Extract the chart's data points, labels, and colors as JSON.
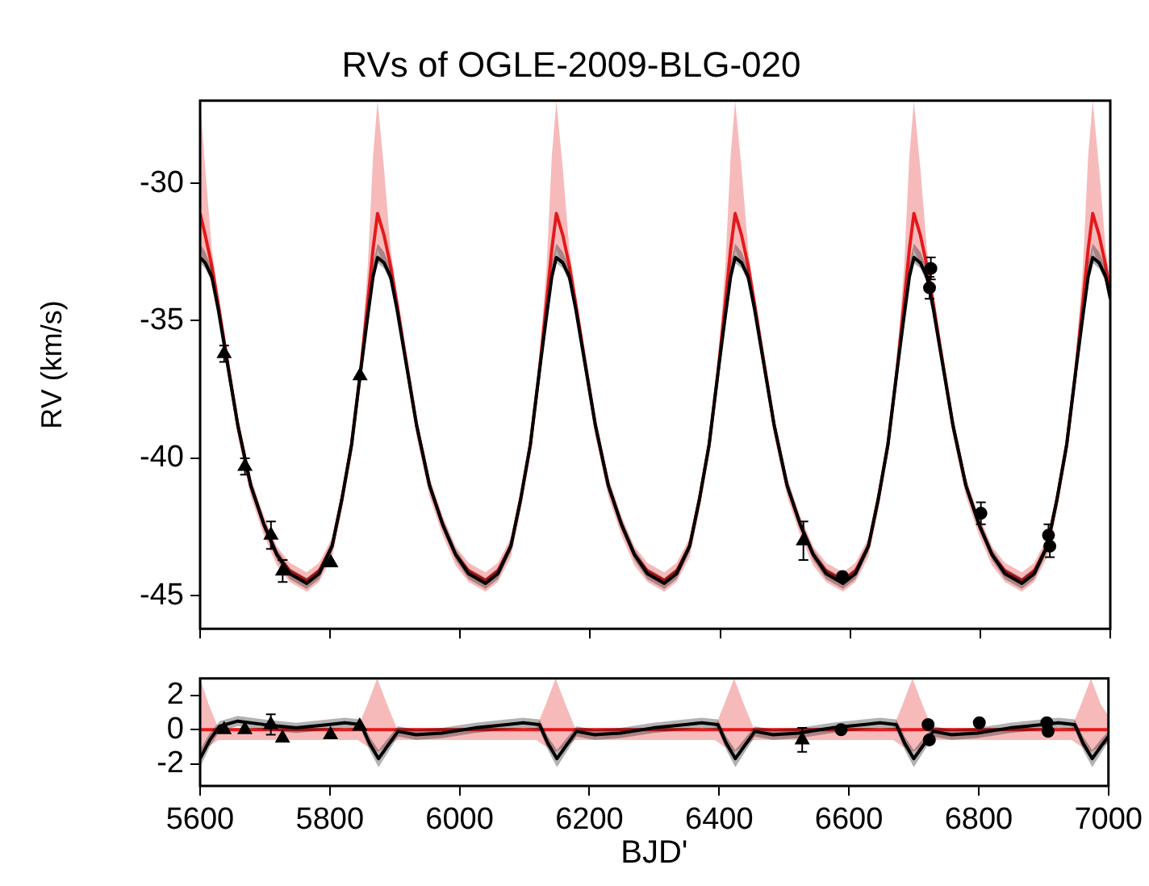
{
  "chart_data": [
    {
      "type": "line",
      "title": "RVs of OGLE-2009-BLG-020",
      "ylabel": "RV (km/s)",
      "xlim": [
        5600,
        7000
      ],
      "xticks": [
        5600,
        5800,
        6000,
        6200,
        6400,
        6600,
        6800,
        7000
      ],
      "ylim": [
        -46.2,
        -27
      ],
      "yticks": [
        -45,
        -40,
        -35,
        -30
      ],
      "tick_labels": "y",
      "grid": false,
      "legend": false,
      "series": [
        {
          "type": "line",
          "color": "#e31a1c",
          "marker": "none",
          "x": [
            5600,
            5608,
            5618,
            5628,
            5638,
            5658,
            5678,
            5698,
            5718,
            5738,
            5764,
            5783,
            5803,
            5818,
            5833,
            5846,
            5858,
            5866,
            5873,
            5883,
            5893,
            5903,
            5913,
            5933,
            5953,
            5973,
            5993,
            6013,
            6039,
            6058,
            6078,
            6093,
            6108,
            6121,
            6133,
            6141,
            6148,
            6158,
            6168,
            6178,
            6188,
            6208,
            6228,
            6248,
            6268,
            6288,
            6314,
            6333,
            6353,
            6368,
            6383,
            6396,
            6408,
            6416,
            6423,
            6433,
            6443,
            6453,
            6463,
            6483,
            6503,
            6523,
            6543,
            6563,
            6589,
            6608,
            6628,
            6643,
            6658,
            6671,
            6683,
            6691,
            6698,
            6708,
            6718,
            6728,
            6738,
            6758,
            6778,
            6798,
            6818,
            6838,
            6864,
            6883,
            6903,
            6918,
            6933,
            6946,
            6958,
            6966,
            6973,
            6983,
            6993,
            7000
          ],
          "values": [
            -31.1,
            -31.9,
            -33.0,
            -34.4,
            -35.9,
            -38.8,
            -41.0,
            -42.4,
            -43.5,
            -44.1,
            -44.45,
            -44.1,
            -43.2,
            -41.5,
            -39.5,
            -37.0,
            -34.3,
            -32.4,
            -31.1,
            -31.9,
            -33.0,
            -34.4,
            -35.9,
            -38.8,
            -41.0,
            -42.4,
            -43.5,
            -44.1,
            -44.45,
            -44.1,
            -43.2,
            -41.5,
            -39.5,
            -37.0,
            -34.3,
            -32.4,
            -31.1,
            -31.9,
            -33.0,
            -34.4,
            -35.9,
            -38.8,
            -41.0,
            -42.4,
            -43.5,
            -44.1,
            -44.45,
            -44.1,
            -43.2,
            -41.5,
            -39.5,
            -37.0,
            -34.3,
            -32.4,
            -31.1,
            -31.9,
            -33.0,
            -34.4,
            -35.9,
            -38.8,
            -41.0,
            -42.4,
            -43.5,
            -44.1,
            -44.45,
            -44.1,
            -43.2,
            -41.5,
            -39.5,
            -37.0,
            -34.3,
            -32.4,
            -31.1,
            -31.9,
            -33.0,
            -34.4,
            -35.9,
            -38.8,
            -41.0,
            -42.4,
            -43.5,
            -44.1,
            -44.45,
            -44.1,
            -43.2,
            -41.5,
            -39.5,
            -37.0,
            -34.3,
            -32.4,
            -31.1,
            -31.9,
            -33.0,
            -34.0
          ],
          "lower": [
            -32.4,
            -33.0,
            -33.6,
            -34.8,
            -36.3,
            -39.2,
            -41.4,
            -42.8,
            -43.9,
            -44.5,
            -44.85,
            -44.5,
            -43.6,
            -41.9,
            -39.9,
            -37.4,
            -35.2,
            -33.7,
            -32.4,
            -33.0,
            -33.6,
            -34.8,
            -36.3,
            -39.2,
            -41.4,
            -42.8,
            -43.9,
            -44.5,
            -44.85,
            -44.5,
            -43.6,
            -41.9,
            -39.9,
            -37.4,
            -35.2,
            -33.7,
            -32.4,
            -33.0,
            -33.6,
            -34.8,
            -36.3,
            -39.2,
            -41.4,
            -42.8,
            -43.9,
            -44.5,
            -44.85,
            -44.5,
            -43.6,
            -41.9,
            -39.9,
            -37.4,
            -35.2,
            -33.7,
            -32.4,
            -33.0,
            -33.6,
            -34.8,
            -36.3,
            -39.2,
            -41.4,
            -42.8,
            -43.9,
            -44.5,
            -44.85,
            -44.5,
            -43.6,
            -41.9,
            -39.9,
            -37.4,
            -35.2,
            -33.7,
            -32.4,
            -33.0,
            -33.6,
            -34.8,
            -36.3,
            -39.2,
            -41.4,
            -42.8,
            -43.9,
            -44.5,
            -44.85,
            -44.5,
            -43.6,
            -41.9,
            -39.9,
            -37.4,
            -35.2,
            -33.7,
            -32.4,
            -33.0,
            -33.6,
            -34.4
          ],
          "upper": [
            -27,
            -29.5,
            -32.4,
            -34.1,
            -35.6,
            -38.5,
            -40.7,
            -42.1,
            -43.2,
            -43.8,
            -44.15,
            -43.8,
            -42.9,
            -41.2,
            -39.2,
            -36.7,
            -33.0,
            -29.0,
            -27,
            -29.5,
            -32.4,
            -34.1,
            -35.6,
            -38.5,
            -40.7,
            -42.1,
            -43.2,
            -43.8,
            -44.15,
            -43.8,
            -42.9,
            -41.2,
            -39.2,
            -36.7,
            -33.0,
            -29.0,
            -27,
            -29.5,
            -32.4,
            -34.1,
            -35.6,
            -38.5,
            -40.7,
            -42.1,
            -43.2,
            -43.8,
            -44.15,
            -43.8,
            -42.9,
            -41.2,
            -39.2,
            -36.7,
            -33.0,
            -29.0,
            -27,
            -29.5,
            -32.4,
            -34.1,
            -35.6,
            -38.5,
            -40.7,
            -42.1,
            -43.2,
            -43.8,
            -44.15,
            -43.8,
            -42.9,
            -41.2,
            -39.2,
            -36.7,
            -33.0,
            -29.0,
            -27,
            -29.5,
            -32.4,
            -34.1,
            -35.6,
            -38.5,
            -40.7,
            -42.1,
            -43.2,
            -43.8,
            -44.15,
            -43.8,
            -42.9,
            -41.2,
            -39.2,
            -36.7,
            -33.0,
            -29.0,
            -27,
            -29.5,
            -32.4,
            -33.7
          ]
        },
        {
          "type": "line",
          "color": "#000000",
          "marker": "none",
          "x": [
            5600,
            5608,
            5618,
            5628,
            5638,
            5658,
            5678,
            5698,
            5718,
            5738,
            5764,
            5783,
            5803,
            5818,
            5833,
            5846,
            5858,
            5866,
            5873,
            5883,
            5893,
            5903,
            5913,
            5933,
            5953,
            5973,
            5993,
            6013,
            6039,
            6058,
            6078,
            6093,
            6108,
            6121,
            6133,
            6141,
            6148,
            6158,
            6168,
            6178,
            6188,
            6208,
            6228,
            6248,
            6268,
            6288,
            6314,
            6333,
            6353,
            6368,
            6383,
            6396,
            6408,
            6416,
            6423,
            6433,
            6443,
            6453,
            6463,
            6483,
            6503,
            6523,
            6543,
            6563,
            6589,
            6608,
            6628,
            6643,
            6658,
            6671,
            6683,
            6691,
            6698,
            6708,
            6718,
            6728,
            6738,
            6758,
            6778,
            6798,
            6818,
            6838,
            6864,
            6883,
            6903,
            6918,
            6933,
            6946,
            6958,
            6966,
            6973,
            6983,
            6993,
            7000
          ],
          "values": [
            -32.7,
            -32.9,
            -33.4,
            -34.6,
            -36.0,
            -38.8,
            -41.0,
            -42.4,
            -43.5,
            -44.2,
            -44.55,
            -44.2,
            -43.2,
            -41.5,
            -39.5,
            -37.0,
            -34.8,
            -33.4,
            -32.7,
            -32.9,
            -33.4,
            -34.6,
            -36.0,
            -38.8,
            -41.0,
            -42.4,
            -43.5,
            -44.2,
            -44.55,
            -44.2,
            -43.2,
            -41.5,
            -39.5,
            -37.0,
            -34.8,
            -33.4,
            -32.7,
            -32.9,
            -33.4,
            -34.6,
            -36.0,
            -38.8,
            -41.0,
            -42.4,
            -43.5,
            -44.2,
            -44.55,
            -44.2,
            -43.2,
            -41.5,
            -39.5,
            -37.0,
            -34.8,
            -33.4,
            -32.7,
            -32.9,
            -33.4,
            -34.6,
            -36.0,
            -38.8,
            -41.0,
            -42.4,
            -43.5,
            -44.2,
            -44.55,
            -44.2,
            -43.2,
            -41.5,
            -39.5,
            -37.0,
            -34.8,
            -33.4,
            -32.7,
            -32.9,
            -33.4,
            -34.6,
            -36.0,
            -38.8,
            -41.0,
            -42.4,
            -43.5,
            -44.2,
            -44.55,
            -44.2,
            -43.2,
            -41.5,
            -39.5,
            -37.0,
            -34.8,
            -33.4,
            -32.7,
            -32.9,
            -33.4,
            -34.2
          ],
          "lower": [
            -32.9,
            -33.1,
            -33.6,
            -34.8,
            -36.2,
            -39.0,
            -41.2,
            -42.6,
            -43.7,
            -44.4,
            -44.75,
            -44.4,
            -43.4,
            -41.7,
            -39.7,
            -37.2,
            -35.0,
            -33.6,
            -32.9,
            -33.1,
            -33.6,
            -34.8,
            -36.2,
            -39.0,
            -41.2,
            -42.6,
            -43.7,
            -44.4,
            -44.75,
            -44.4,
            -43.4,
            -41.7,
            -39.7,
            -37.2,
            -35.0,
            -33.6,
            -32.9,
            -33.1,
            -33.6,
            -34.8,
            -36.2,
            -39.0,
            -41.2,
            -42.6,
            -43.7,
            -44.4,
            -44.75,
            -44.4,
            -43.4,
            -41.7,
            -39.7,
            -37.2,
            -35.0,
            -33.6,
            -32.9,
            -33.1,
            -33.6,
            -34.8,
            -36.2,
            -39.0,
            -41.2,
            -42.6,
            -43.7,
            -44.4,
            -44.75,
            -44.4,
            -43.4,
            -41.7,
            -39.7,
            -37.2,
            -35.0,
            -33.6,
            -32.9,
            -33.1,
            -33.6,
            -34.8,
            -36.2,
            -39.0,
            -41.2,
            -42.6,
            -43.7,
            -44.4,
            -44.75,
            -44.4,
            -43.4,
            -41.7,
            -39.7,
            -37.2,
            -35.0,
            -33.6,
            -32.9,
            -33.1,
            -33.6,
            -34.4
          ],
          "upper": [
            -32.2,
            -32.5,
            -33.1,
            -34.4,
            -35.8,
            -38.6,
            -40.8,
            -42.2,
            -43.3,
            -44.0,
            -44.35,
            -44.0,
            -43.0,
            -41.3,
            -39.3,
            -36.8,
            -34.5,
            -32.9,
            -32.2,
            -32.5,
            -33.1,
            -34.4,
            -35.8,
            -38.6,
            -40.8,
            -42.2,
            -43.3,
            -44.0,
            -44.35,
            -44.0,
            -43.0,
            -41.3,
            -39.3,
            -36.8,
            -34.5,
            -32.9,
            -32.2,
            -32.5,
            -33.1,
            -34.4,
            -35.8,
            -38.6,
            -40.8,
            -42.2,
            -43.3,
            -44.0,
            -44.35,
            -44.0,
            -43.0,
            -41.3,
            -39.3,
            -36.8,
            -34.5,
            -32.9,
            -32.2,
            -32.5,
            -33.1,
            -34.4,
            -35.8,
            -38.6,
            -40.8,
            -42.2,
            -43.3,
            -44.0,
            -44.35,
            -44.0,
            -43.0,
            -41.3,
            -39.3,
            -36.8,
            -34.5,
            -32.9,
            -32.2,
            -32.5,
            -33.1,
            -34.4,
            -35.8,
            -38.6,
            -40.8,
            -42.2,
            -43.3,
            -44.0,
            -44.35,
            -44.0,
            -43.0,
            -41.3,
            -39.3,
            -36.8,
            -34.5,
            -32.9,
            -32.2,
            -32.5,
            -33.1,
            -34.0
          ]
        },
        {
          "type": "scatter",
          "color": "#000000",
          "marker": "triangle",
          "x": [
            5637,
            5669,
            5709,
            5727,
            5801,
            5846,
            6528
          ],
          "values": [
            -36.2,
            -40.3,
            -42.8,
            -44.1,
            -43.8,
            -37.0,
            -43.0
          ],
          "errors": [
            0.3,
            0.3,
            0.5,
            0.4,
            null,
            null,
            0.7
          ]
        },
        {
          "type": "scatter",
          "color": "#000000",
          "marker": "circle",
          "x": [
            6588,
            6722,
            6724,
            6801,
            6905,
            6907
          ],
          "values": [
            -44.3,
            -33.8,
            -33.1,
            -42.0,
            -42.8,
            -43.2
          ],
          "errors": [
            null,
            0.4,
            0.4,
            0.4,
            0.4,
            0.4
          ]
        }
      ]
    },
    {
      "type": "line",
      "xlabel": "BJD'",
      "xlim": [
        5600,
        7000
      ],
      "xticks": [
        5600,
        5800,
        6000,
        6200,
        6400,
        6600,
        6800,
        7000
      ],
      "ylim": [
        -3.3,
        3
      ],
      "yticks": [
        -2,
        0,
        2
      ],
      "grid": false,
      "legend": false,
      "series": [
        {
          "type": "line",
          "color": "#e31a1c",
          "marker": "none",
          "x": [
            5600,
            5613,
            5628,
            5843,
            5858,
            5873,
            5888,
            5903,
            6118,
            6133,
            6148,
            6163,
            6178,
            6393,
            6408,
            6423,
            6438,
            6453,
            6668,
            6683,
            6698,
            6713,
            6728,
            6943,
            6958,
            6973,
            6988,
            7000
          ],
          "values": [
            0,
            0,
            0,
            0,
            0,
            0,
            0,
            0,
            0,
            0,
            0,
            0,
            0,
            0,
            0,
            0,
            0,
            0,
            0,
            0,
            0,
            0,
            0,
            0,
            0,
            0,
            0,
            0
          ],
          "lower": [
            -1.3,
            -1.0,
            -0.6,
            -0.6,
            -1.0,
            -1.3,
            -1.0,
            -0.6,
            -0.6,
            -1.0,
            -1.3,
            -1.0,
            -0.6,
            -0.6,
            -1.0,
            -1.3,
            -1.0,
            -0.6,
            -0.6,
            -1.0,
            -1.3,
            -1.0,
            -0.6,
            -0.6,
            -1.0,
            -1.3,
            -1.0,
            -0.8
          ],
          "upper": [
            3,
            1.5,
            0.1,
            0.1,
            1.5,
            3,
            1.5,
            0.1,
            0.1,
            1.5,
            3,
            1.5,
            0.1,
            0.1,
            1.5,
            3,
            1.5,
            0.1,
            0.1,
            1.5,
            3,
            1.5,
            0.1,
            0.1,
            1.5,
            3,
            1.5,
            0.8
          ]
        },
        {
          "type": "line",
          "color": "#000000",
          "marker": "none",
          "x": [
            5600,
            5615,
            5630,
            5658,
            5698,
            5748,
            5798,
            5823,
            5848,
            5861,
            5875,
            5890,
            5905,
            5933,
            5973,
            6023,
            6073,
            6098,
            6123,
            6136,
            6150,
            6165,
            6180,
            6208,
            6248,
            6298,
            6348,
            6373,
            6398,
            6411,
            6425,
            6440,
            6455,
            6483,
            6523,
            6573,
            6623,
            6648,
            6673,
            6686,
            6700,
            6715,
            6730,
            6758,
            6798,
            6848,
            6898,
            6923,
            6948,
            6961,
            6975,
            6990,
            7000
          ],
          "values": [
            -1.7,
            -0.6,
            0.2,
            0.5,
            0.3,
            0.1,
            0.3,
            0.4,
            0.3,
            -0.8,
            -1.7,
            -0.9,
            -0.1,
            -0.3,
            -0.2,
            0.1,
            0.3,
            0.4,
            0.3,
            -0.8,
            -1.7,
            -0.9,
            -0.1,
            -0.3,
            -0.2,
            0.1,
            0.3,
            0.4,
            0.3,
            -0.8,
            -1.7,
            -0.9,
            -0.1,
            -0.3,
            -0.2,
            0.1,
            0.3,
            0.4,
            0.3,
            -0.8,
            -1.7,
            -0.9,
            -0.1,
            -0.3,
            -0.2,
            0.1,
            0.3,
            0.4,
            0.3,
            -0.8,
            -1.7,
            -0.9,
            -0.4
          ],
          "lower": [
            -2.2,
            -1.0,
            -0.1,
            0.2,
            0.0,
            -0.2,
            0.0,
            0.1,
            0.0,
            -1.2,
            -2.2,
            -1.3,
            -0.4,
            -0.6,
            -0.5,
            -0.2,
            0.0,
            0.1,
            0.0,
            -1.2,
            -2.2,
            -1.3,
            -0.4,
            -0.6,
            -0.5,
            -0.2,
            0.0,
            0.1,
            0.0,
            -1.2,
            -2.2,
            -1.3,
            -0.4,
            -0.6,
            -0.5,
            -0.2,
            0.0,
            0.1,
            0.0,
            -1.2,
            -2.2,
            -1.3,
            -0.4,
            -0.6,
            -0.5,
            -0.2,
            0.0,
            0.1,
            0.0,
            -1.2,
            -2.2,
            -1.3,
            -0.7
          ],
          "upper": [
            -1.2,
            -0.2,
            0.5,
            0.8,
            0.6,
            0.4,
            0.6,
            0.7,
            0.6,
            -0.4,
            -1.2,
            -0.5,
            0.2,
            0.0,
            0.1,
            0.4,
            0.6,
            0.7,
            0.6,
            -0.4,
            -1.2,
            -0.5,
            0.2,
            0.0,
            0.1,
            0.4,
            0.6,
            0.7,
            0.6,
            -0.4,
            -1.2,
            -0.5,
            0.2,
            0.0,
            0.1,
            0.4,
            0.6,
            0.7,
            0.6,
            -0.4,
            -1.2,
            -0.5,
            0.2,
            0.0,
            0.1,
            0.4,
            0.6,
            0.7,
            0.6,
            -0.4,
            -1.2,
            -0.5,
            -0.1
          ]
        },
        {
          "type": "scatter",
          "color": "#000000",
          "marker": "triangle",
          "x": [
            5637,
            5669,
            5709,
            5727,
            5801,
            5846,
            6528
          ],
          "values": [
            0.0,
            0.0,
            0.3,
            -0.5,
            -0.3,
            0.2,
            -0.6
          ],
          "errors": [
            null,
            null,
            0.6,
            null,
            null,
            null,
            0.7
          ]
        },
        {
          "type": "scatter",
          "color": "#000000",
          "marker": "circle",
          "x": [
            6588,
            6722,
            6724,
            6801,
            6905,
            6907
          ],
          "values": [
            0.0,
            0.3,
            -0.6,
            0.4,
            0.4,
            -0.1
          ]
        }
      ]
    }
  ]
}
